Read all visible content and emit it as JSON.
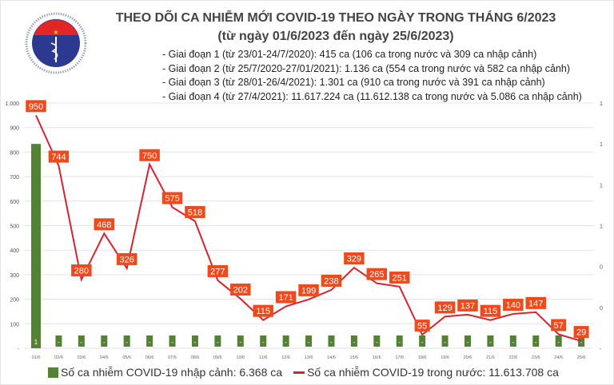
{
  "logo": {
    "top_text": "BỘ Y TẾ",
    "bottom_text": "MINISTRY OF HEALTH"
  },
  "title": "THEO DÕI CA NHIỄM MỚI COVID-19 THEO NGÀY TRONG THÁNG 6/2023",
  "subtitle": "(từ ngày 01/6/2023 đến ngày 25/6/2023)",
  "notes": [
    "- Giai đoạn 1 (từ 23/01-24/7/2020): 415 ca (106 ca trong nước và 309 ca nhập cảnh)",
    "- Giai đoạn 2 (từ 25/7/2020-27/01/2021): 1.136 ca (554 ca trong nước và 582 ca nhập cảnh)",
    "- Giai đoạn 3 (từ 28/01-26/4/2021): 1.301 ca (910 ca trong nước và 391 ca nhập cảnh)",
    "- Giai đoạn 4 (từ 27/4/2021): 11.617.224 ca (11.612.138 ca trong nước và 5.086 ca nhập cảnh)"
  ],
  "colors": {
    "bar": "#548235",
    "line": "#d9232d",
    "label_box": "#f04a1c",
    "grid": "#e3e3e3"
  },
  "chart_data": {
    "type": "bar+line",
    "categories": [
      "01/6",
      "02/6",
      "03/6",
      "04/6",
      "05/6",
      "06/6",
      "07/6",
      "08/6",
      "09/6",
      "10/6",
      "11/6",
      "12/6",
      "13/6",
      "14/6",
      "15/6",
      "16/6",
      "17/6",
      "18/6",
      "19/6",
      "20/6",
      "21/6",
      "22/6",
      "23/6",
      "24/6",
      "25/6"
    ],
    "series": [
      {
        "name": "Số ca nhiễm COVID-19 nhập cảnh: 6.368 ca",
        "type": "bar",
        "axis": "right",
        "values": [
          1,
          0,
          0,
          0,
          0,
          0,
          0,
          0,
          0,
          0,
          0,
          0,
          0,
          0,
          0,
          0,
          0,
          0,
          0,
          0,
          0,
          0,
          0,
          0,
          0
        ],
        "labels": [
          "1",
          "-",
          "-",
          "-",
          "-",
          "-",
          "-",
          "-",
          "-",
          "-",
          "-",
          "-",
          "-",
          "-",
          "-",
          "-",
          "-",
          "-",
          "-",
          "-",
          "-",
          "-",
          "-",
          "-",
          "-"
        ]
      },
      {
        "name": "Số ca nhiễm COVID-19 trong nước: 11.613.708 ca",
        "type": "line",
        "axis": "left",
        "values": [
          950,
          744,
          280,
          468,
          326,
          750,
          575,
          518,
          277,
          202,
          115,
          171,
          199,
          238,
          329,
          265,
          251,
          55,
          129,
          137,
          115,
          140,
          147,
          57,
          29
        ]
      }
    ],
    "y_left": {
      "range": [
        0,
        1000
      ],
      "ticks": [
        "-",
        "100",
        "200",
        "300",
        "400",
        "500",
        "600",
        "700",
        "800",
        "900",
        "1.000"
      ]
    },
    "y_right": {
      "range": [
        0,
        1.2
      ],
      "ticks": [
        "-",
        "0",
        "0",
        "1",
        "1",
        "1",
        "1"
      ]
    },
    "grid": true,
    "legend": "bottom"
  }
}
